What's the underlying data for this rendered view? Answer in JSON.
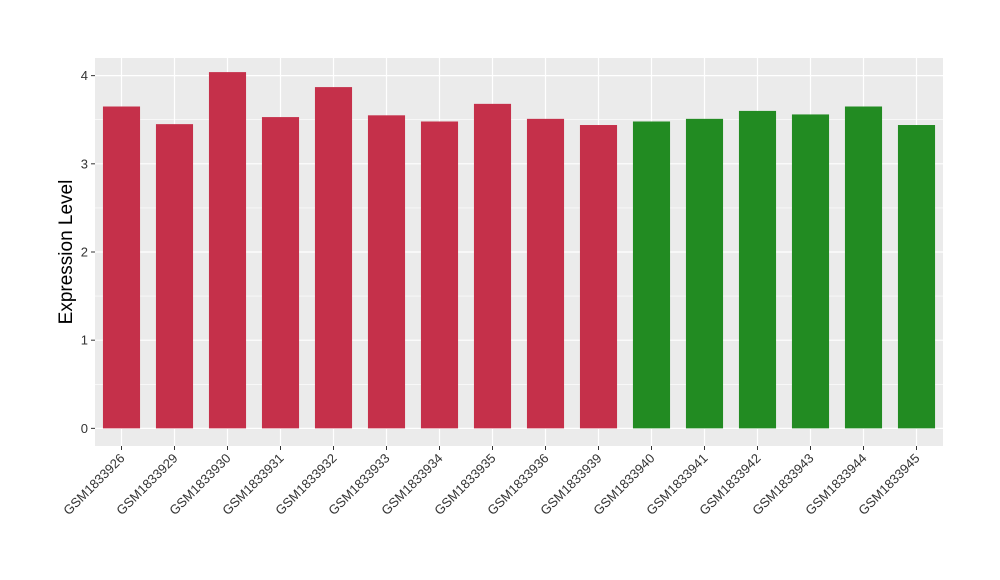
{
  "chart_data": {
    "type": "bar",
    "title": "",
    "xlabel": "",
    "ylabel": "Expression Level",
    "ylim": [
      -0.2,
      4.2
    ],
    "yticks": [
      0,
      1,
      2,
      3,
      4
    ],
    "grid": true,
    "categories": [
      "GSM1833926",
      "GSM1833929",
      "GSM1833930",
      "GSM1833931",
      "GSM1833932",
      "GSM1833933",
      "GSM1833934",
      "GSM1833935",
      "GSM1833936",
      "GSM1833939",
      "GSM1833940",
      "GSM1833941",
      "GSM1833942",
      "GSM1833943",
      "GSM1833944",
      "GSM1833945"
    ],
    "values": [
      3.65,
      3.45,
      4.04,
      3.53,
      3.87,
      3.55,
      3.48,
      3.68,
      3.51,
      3.44,
      3.48,
      3.51,
      3.6,
      3.56,
      3.65,
      3.44
    ],
    "bar_colors": [
      "#C5304A",
      "#C5304A",
      "#C5304A",
      "#C5304A",
      "#C5304A",
      "#C5304A",
      "#C5304A",
      "#C5304A",
      "#C5304A",
      "#C5304A",
      "#228B22",
      "#228B22",
      "#228B22",
      "#228B22",
      "#228B22",
      "#228B22"
    ],
    "panel_color": "#EBEBEB",
    "grid_color": "#FFFFFF"
  }
}
